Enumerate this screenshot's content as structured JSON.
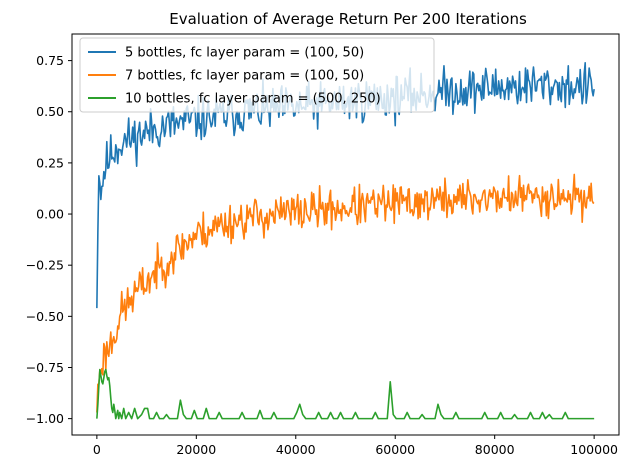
{
  "chart_data": {
    "type": "line",
    "title": "Evaluation of Average Return Per 200 Iterations",
    "xlabel": "",
    "ylabel": "",
    "xlim": [
      -5000,
      105000
    ],
    "ylim": [
      -1.08,
      0.88
    ],
    "xticks": [
      0,
      20000,
      40000,
      60000,
      80000,
      100000
    ],
    "xtick_labels": [
      "0",
      "20000",
      "40000",
      "60000",
      "80000",
      "100000"
    ],
    "yticks": [
      -1.0,
      -0.75,
      -0.5,
      -0.25,
      0.0,
      0.25,
      0.5,
      0.75
    ],
    "ytick_labels": [
      "−1.00",
      "−0.75",
      "−0.50",
      "−0.25",
      "0.00",
      "0.25",
      "0.50",
      "0.75"
    ],
    "grid": false,
    "legend_position": "top-left",
    "x_step": 200,
    "series": [
      {
        "name": "5 bottles, fc layer param = (100, 50)",
        "color": "#1f77b4",
        "anchors": [
          [
            0,
            -0.46
          ],
          [
            400,
            0.25
          ],
          [
            800,
            0.1
          ],
          [
            1500,
            0.22
          ],
          [
            3000,
            0.3
          ],
          [
            5000,
            0.35
          ],
          [
            8000,
            0.38
          ],
          [
            12000,
            0.42
          ],
          [
            16000,
            0.44
          ],
          [
            20000,
            0.46
          ],
          [
            30000,
            0.5
          ],
          [
            40000,
            0.52
          ],
          [
            50000,
            0.55
          ],
          [
            60000,
            0.57
          ],
          [
            70000,
            0.6
          ],
          [
            80000,
            0.62
          ],
          [
            90000,
            0.63
          ],
          [
            100000,
            0.62
          ]
        ],
        "noise": 0.1,
        "seed": 11
      },
      {
        "name": "7 bottles, fc layer param = (100, 50)",
        "color": "#ff7f0e",
        "anchors": [
          [
            0,
            -0.97
          ],
          [
            400,
            -0.8
          ],
          [
            1000,
            -0.72
          ],
          [
            3000,
            -0.62
          ],
          [
            5000,
            -0.48
          ],
          [
            8000,
            -0.38
          ],
          [
            12000,
            -0.28
          ],
          [
            16000,
            -0.18
          ],
          [
            20000,
            -0.1
          ],
          [
            25000,
            -0.05
          ],
          [
            30000,
            -0.02
          ],
          [
            40000,
            0.01
          ],
          [
            50000,
            0.03
          ],
          [
            60000,
            0.05
          ],
          [
            70000,
            0.07
          ],
          [
            80000,
            0.08
          ],
          [
            90000,
            0.09
          ],
          [
            100000,
            0.08
          ]
        ],
        "noise": 0.09,
        "seed": 23
      },
      {
        "name": "10 bottles, fc layer param = (500, 250)",
        "color": "#2ca02c",
        "anchors": [
          [
            0,
            -1.0
          ],
          [
            100000,
            -1.0
          ]
        ],
        "noise": 0.0,
        "seed": 37,
        "points": [
          [
            0,
            -1.0
          ],
          [
            200,
            -0.93
          ],
          [
            400,
            -0.84
          ],
          [
            600,
            -0.76
          ],
          [
            800,
            -0.79
          ],
          [
            1000,
            -0.82
          ],
          [
            1200,
            -0.83
          ],
          [
            1400,
            -0.8
          ],
          [
            1600,
            -0.77
          ],
          [
            1800,
            -0.76
          ],
          [
            2000,
            -0.79
          ],
          [
            2200,
            -0.81
          ],
          [
            2400,
            -0.8
          ],
          [
            2600,
            -0.84
          ],
          [
            2800,
            -0.9
          ],
          [
            3000,
            -0.95
          ],
          [
            3200,
            -0.97
          ],
          [
            3400,
            -0.93
          ],
          [
            3600,
            -0.96
          ],
          [
            3800,
            -1.0
          ],
          [
            4000,
            -0.98
          ],
          [
            4200,
            -0.96
          ],
          [
            4400,
            -1.0
          ],
          [
            4600,
            -0.97
          ],
          [
            5000,
            -1.0
          ],
          [
            5400,
            -0.95
          ],
          [
            5800,
            -1.0
          ],
          [
            6400,
            -0.97
          ],
          [
            7000,
            -1.0
          ],
          [
            7600,
            -0.95
          ],
          [
            8200,
            -1.0
          ],
          [
            9000,
            -0.98
          ],
          [
            9600,
            -0.95
          ],
          [
            10200,
            -0.95
          ],
          [
            10600,
            -1.0
          ],
          [
            11400,
            -1.0
          ],
          [
            12000,
            -0.97
          ],
          [
            12600,
            -1.0
          ],
          [
            13400,
            -1.0
          ],
          [
            14000,
            -0.98
          ],
          [
            14600,
            -1.0
          ],
          [
            16200,
            -1.0
          ],
          [
            16800,
            -0.91
          ],
          [
            17400,
            -0.98
          ],
          [
            18000,
            -1.0
          ],
          [
            19000,
            -1.0
          ],
          [
            19600,
            -0.96
          ],
          [
            20200,
            -1.0
          ],
          [
            21400,
            -1.0
          ],
          [
            22000,
            -0.95
          ],
          [
            22600,
            -1.0
          ],
          [
            24000,
            -1.0
          ],
          [
            24600,
            -0.97
          ],
          [
            25200,
            -1.0
          ],
          [
            28600,
            -1.0
          ],
          [
            29200,
            -0.97
          ],
          [
            29800,
            -1.0
          ],
          [
            32200,
            -1.0
          ],
          [
            32800,
            -0.96
          ],
          [
            33400,
            -1.0
          ],
          [
            35000,
            -1.0
          ],
          [
            35600,
            -0.97
          ],
          [
            36200,
            -1.0
          ],
          [
            39600,
            -1.0
          ],
          [
            40200,
            -0.97
          ],
          [
            40800,
            -0.93
          ],
          [
            41400,
            -0.98
          ],
          [
            42000,
            -1.0
          ],
          [
            44000,
            -1.0
          ],
          [
            44600,
            -0.97
          ],
          [
            45200,
            -1.0
          ],
          [
            46400,
            -1.0
          ],
          [
            47000,
            -0.97
          ],
          [
            47600,
            -1.0
          ],
          [
            48400,
            -1.0
          ],
          [
            49000,
            -0.97
          ],
          [
            49600,
            -1.0
          ],
          [
            51400,
            -1.0
          ],
          [
            52000,
            -0.97
          ],
          [
            52600,
            -1.0
          ],
          [
            55400,
            -1.0
          ],
          [
            56000,
            -0.97
          ],
          [
            56600,
            -1.0
          ],
          [
            58400,
            -1.0
          ],
          [
            59000,
            -0.82
          ],
          [
            59600,
            -0.98
          ],
          [
            60200,
            -1.0
          ],
          [
            61800,
            -1.0
          ],
          [
            62400,
            -0.97
          ],
          [
            63000,
            -1.0
          ],
          [
            64800,
            -1.0
          ],
          [
            65400,
            -0.98
          ],
          [
            66000,
            -1.0
          ],
          [
            68000,
            -1.0
          ],
          [
            68600,
            -0.93
          ],
          [
            69200,
            -0.98
          ],
          [
            69800,
            -1.0
          ],
          [
            71600,
            -1.0
          ],
          [
            72200,
            -0.97
          ],
          [
            72800,
            -1.0
          ],
          [
            77400,
            -1.0
          ],
          [
            78000,
            -0.97
          ],
          [
            78600,
            -1.0
          ],
          [
            80600,
            -1.0
          ],
          [
            81200,
            -0.97
          ],
          [
            81800,
            -1.0
          ],
          [
            83400,
            -1.0
          ],
          [
            84000,
            -0.98
          ],
          [
            84600,
            -1.0
          ],
          [
            86600,
            -1.0
          ],
          [
            87200,
            -0.97
          ],
          [
            87800,
            -1.0
          ],
          [
            89000,
            -1.0
          ],
          [
            89600,
            -0.97
          ],
          [
            90200,
            -1.0
          ],
          [
            91000,
            -0.98
          ],
          [
            91600,
            -1.0
          ],
          [
            93600,
            -1.0
          ],
          [
            94200,
            -0.97
          ],
          [
            94800,
            -1.0
          ],
          [
            100000,
            -1.0
          ]
        ]
      }
    ]
  }
}
